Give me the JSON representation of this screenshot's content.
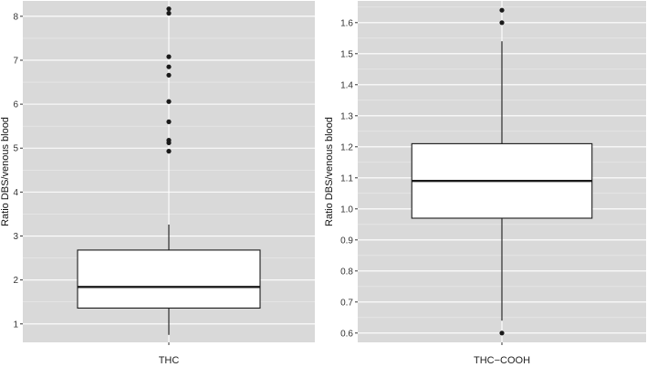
{
  "chart_data": [
    {
      "type": "box",
      "title": "",
      "xlabel": "",
      "ylabel": "Ratio DBS/venous blood",
      "ylim": [
        0.58,
        8.35
      ],
      "yticks": [
        "1",
        "2",
        "3",
        "4",
        "5",
        "6",
        "7",
        "8"
      ],
      "categories": [
        "THC"
      ],
      "grid": true,
      "series": [
        {
          "category": "THC",
          "whisker_low": 0.75,
          "q1": 1.36,
          "median": 1.84,
          "q3": 2.68,
          "whisker_high": 3.26,
          "outliers": [
            4.93,
            5.12,
            5.18,
            5.6,
            6.06,
            6.66,
            6.85,
            7.08,
            8.07,
            8.17
          ]
        }
      ]
    },
    {
      "type": "box",
      "title": "",
      "xlabel": "",
      "ylabel": "Ratio DBS/venous blood",
      "ylim": [
        0.57,
        1.67
      ],
      "yticks": [
        "0.6",
        "0.7",
        "0.8",
        "0.9",
        "1.0",
        "1.1",
        "1.2",
        "1.3",
        "1.4",
        "1.5",
        "1.6"
      ],
      "categories": [
        "THC−COOH"
      ],
      "grid": true,
      "series": [
        {
          "category": "THC−COOH",
          "whisker_low": 0.64,
          "q1": 0.97,
          "median": 1.09,
          "q3": 1.21,
          "whisker_high": 1.54,
          "outliers": [
            0.6,
            1.6,
            1.64
          ]
        }
      ]
    }
  ],
  "colors": {
    "panel_background": "#d9d9d9",
    "grid_major": "#ffffff",
    "grid_minor": "#ebebeb",
    "box_fill": "#ffffff",
    "box_line": "#1a1a1a",
    "outlier": "#1a1a1a"
  }
}
